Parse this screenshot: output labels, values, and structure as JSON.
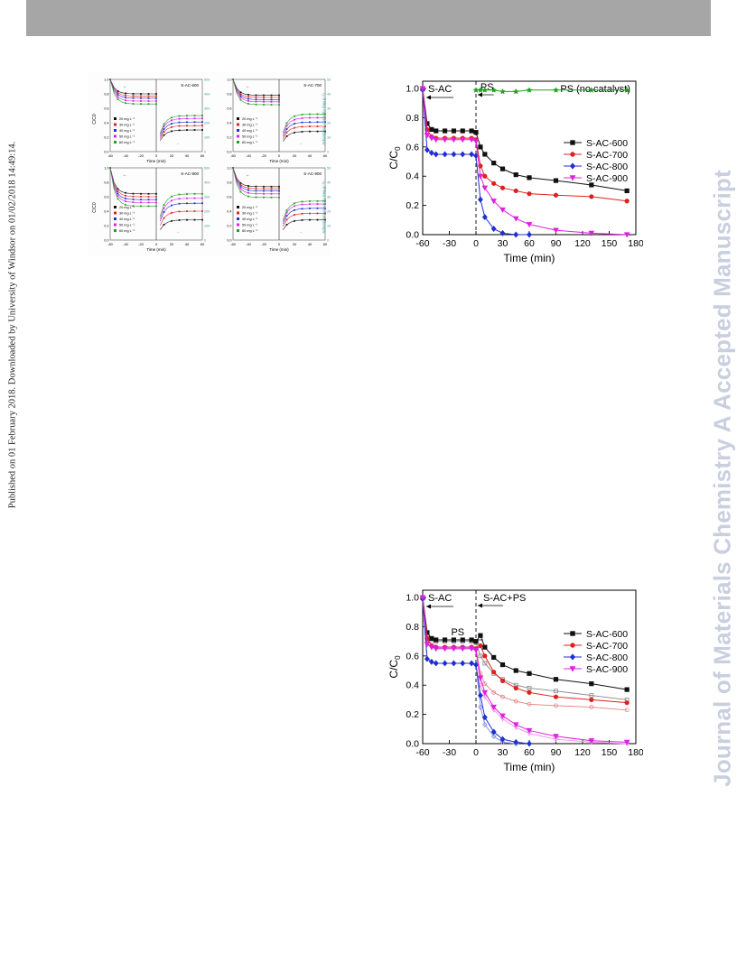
{
  "page": {
    "side_note": "Published on 01 February 2018. Downloaded by University of Windsor on 01/02/2018 14:49:14.",
    "watermark": "Journal of Materials Chemistry A Accepted Manuscript"
  },
  "chart_data": [
    {
      "id": "small-grid",
      "type": "line",
      "panels": [
        {
          "label": "S-AC-600",
          "adsorption": [
            0.8,
            0.77,
            0.74,
            0.7,
            0.66
          ],
          "capacity": [
            0.3,
            0.36,
            0.41,
            0.46,
            0.5
          ]
        },
        {
          "label": "S-AC-700",
          "adsorption": [
            0.78,
            0.75,
            0.72,
            0.69,
            0.65
          ],
          "capacity": [
            0.28,
            0.35,
            0.41,
            0.47,
            0.52
          ]
        },
        {
          "label": "S-AC-800",
          "adsorption": [
            0.64,
            0.6,
            0.56,
            0.52,
            0.47
          ],
          "capacity": [
            0.28,
            0.4,
            0.51,
            0.58,
            0.64
          ]
        },
        {
          "label": "S-AC-900",
          "adsorption": [
            0.74,
            0.71,
            0.68,
            0.64,
            0.59
          ],
          "capacity": [
            0.28,
            0.37,
            0.44,
            0.5,
            0.54
          ]
        }
      ],
      "legend": [
        "20 mg L⁻¹",
        "30 mg L⁻¹",
        "40 mg L⁻¹",
        "50 mg L⁻¹",
        "60 mg L⁻¹"
      ],
      "colors": [
        "#111111",
        "#e02020",
        "#2030d0",
        "#e020e0",
        "#20a020"
      ],
      "xlabel": "Time (min)",
      "ylabel_left": "C/C0",
      "ylabel_right": "Adsorption capacity (mg g⁻¹)",
      "xticks": [
        "-60",
        "-40",
        "-20",
        "0",
        "20",
        "40",
        "60"
      ],
      "yticks_left": [
        "0.0",
        "0.2",
        "0.4",
        "0.6",
        "0.8",
        "1.0"
      ],
      "yticks_right": [
        "0",
        "100",
        "200",
        "300",
        "400",
        "500"
      ]
    },
    {
      "id": "ps-chart",
      "type": "line",
      "xlabel": "Time (min)",
      "ylabel": "C/C",
      "ylabel_sub": "0",
      "xlim": [
        -60,
        180
      ],
      "ylim": [
        0.0,
        1.05
      ],
      "xticks": [
        "-60",
        "-30",
        "0",
        "30",
        "60",
        "90",
        "120",
        "150",
        "180"
      ],
      "yticks": [
        "0.0",
        "0.2",
        "0.4",
        "0.6",
        "0.8",
        "1.0"
      ],
      "annotations": {
        "left": "S-AC",
        "mid": "PS",
        "right": "PS (no catalyst)"
      },
      "series": [
        {
          "name": "S-AC-600",
          "color": "#111111",
          "marker": "square",
          "x": [
            -60,
            -55,
            -50,
            -45,
            -35,
            -25,
            -15,
            -5,
            0,
            5,
            10,
            20,
            30,
            45,
            60,
            90,
            130,
            170
          ],
          "y": [
            1.0,
            0.76,
            0.72,
            0.71,
            0.71,
            0.71,
            0.71,
            0.71,
            0.7,
            0.6,
            0.55,
            0.49,
            0.45,
            0.41,
            0.39,
            0.37,
            0.34,
            0.3
          ]
        },
        {
          "name": "S-AC-700",
          "color": "#e02020",
          "marker": "circle",
          "x": [
            -60,
            -55,
            -50,
            -45,
            -35,
            -25,
            -15,
            -5,
            0,
            5,
            10,
            20,
            30,
            45,
            60,
            90,
            130,
            170
          ],
          "y": [
            1.0,
            0.72,
            0.67,
            0.66,
            0.66,
            0.66,
            0.66,
            0.66,
            0.65,
            0.47,
            0.4,
            0.35,
            0.32,
            0.3,
            0.28,
            0.27,
            0.26,
            0.23
          ]
        },
        {
          "name": "S-AC-800",
          "color": "#2030d0",
          "marker": "diamond",
          "x": [
            -60,
            -55,
            -50,
            -45,
            -35,
            -25,
            -15,
            -5,
            0,
            5,
            10,
            20,
            30,
            45,
            60
          ],
          "y": [
            0.99,
            0.58,
            0.56,
            0.55,
            0.55,
            0.55,
            0.55,
            0.55,
            0.54,
            0.24,
            0.12,
            0.04,
            0.01,
            0.0,
            0.0
          ]
        },
        {
          "name": "S-AC-900",
          "color": "#e020e0",
          "marker": "triangle-down",
          "x": [
            -60,
            -55,
            -50,
            -45,
            -35,
            -25,
            -15,
            -5,
            0,
            5,
            10,
            20,
            30,
            45,
            60,
            90,
            130,
            170
          ],
          "y": [
            1.0,
            0.68,
            0.66,
            0.65,
            0.65,
            0.65,
            0.65,
            0.65,
            0.64,
            0.4,
            0.32,
            0.23,
            0.17,
            0.11,
            0.07,
            0.03,
            0.01,
            0.0
          ]
        },
        {
          "name": "",
          "color": "#20a020",
          "marker": "star",
          "x": [
            0,
            5,
            10,
            20,
            30,
            45,
            60,
            90,
            130,
            170
          ],
          "y": [
            0.99,
            0.99,
            0.99,
            0.99,
            0.98,
            0.98,
            0.99,
            0.99,
            0.99,
            0.99
          ]
        }
      ],
      "legend_position": "right-middle"
    },
    {
      "id": "sac-ps-chart",
      "type": "line",
      "xlabel": "Time (min)",
      "ylabel": "C/C",
      "ylabel_sub": "0",
      "xlim": [
        -60,
        180
      ],
      "ylim": [
        0.0,
        1.05
      ],
      "xticks": [
        "-60",
        "-30",
        "0",
        "30",
        "60",
        "90",
        "120",
        "150",
        "180"
      ],
      "yticks": [
        "0.0",
        "0.2",
        "0.4",
        "0.6",
        "0.8",
        "1.0"
      ],
      "annotations": {
        "left": "S-AC",
        "mid": "PS",
        "right": "S-AC+PS"
      },
      "series": [
        {
          "name": "S-AC-600",
          "color": "#111111",
          "marker": "square",
          "x": [
            -60,
            -55,
            -50,
            -45,
            -35,
            -25,
            -15,
            -5,
            0,
            5,
            10,
            20,
            30,
            45,
            60,
            90,
            130,
            170
          ],
          "y": [
            1.0,
            0.76,
            0.72,
            0.71,
            0.71,
            0.71,
            0.71,
            0.71,
            0.7,
            0.74,
            0.66,
            0.59,
            0.54,
            0.5,
            0.48,
            0.44,
            0.41,
            0.37
          ]
        },
        {
          "name": "S-AC-700",
          "color": "#e02020",
          "marker": "circle",
          "x": [
            -60,
            -55,
            -50,
            -45,
            -35,
            -25,
            -15,
            -5,
            0,
            5,
            10,
            20,
            30,
            45,
            60,
            90,
            130,
            170
          ],
          "y": [
            1.0,
            0.72,
            0.67,
            0.66,
            0.66,
            0.66,
            0.66,
            0.66,
            0.65,
            0.67,
            0.6,
            0.49,
            0.43,
            0.38,
            0.35,
            0.32,
            0.3,
            0.28
          ]
        },
        {
          "name": "S-AC-800",
          "color": "#2030d0",
          "marker": "diamond",
          "x": [
            -60,
            -55,
            -50,
            -45,
            -35,
            -25,
            -15,
            -5,
            0,
            5,
            10,
            20,
            30,
            45,
            60
          ],
          "y": [
            0.99,
            0.58,
            0.56,
            0.55,
            0.55,
            0.55,
            0.55,
            0.55,
            0.54,
            0.33,
            0.18,
            0.08,
            0.03,
            0.01,
            0.0
          ]
        },
        {
          "name": "S-AC-900",
          "color": "#e020e0",
          "marker": "triangle-down",
          "x": [
            -60,
            -55,
            -50,
            -45,
            -35,
            -25,
            -15,
            -5,
            0,
            5,
            10,
            20,
            30,
            45,
            60,
            90,
            130,
            170
          ],
          "y": [
            1.0,
            0.68,
            0.66,
            0.65,
            0.65,
            0.65,
            0.65,
            0.65,
            0.64,
            0.45,
            0.35,
            0.25,
            0.19,
            0.13,
            0.09,
            0.05,
            0.02,
            0.01
          ]
        }
      ],
      "ghost_series": [
        {
          "color": "#888888",
          "x": [
            -60,
            -55,
            -50,
            -45,
            -35,
            -25,
            -15,
            -5,
            0,
            5,
            10,
            20,
            30,
            45,
            60,
            90,
            130,
            170
          ],
          "y": [
            1.0,
            0.74,
            0.71,
            0.7,
            0.7,
            0.7,
            0.7,
            0.7,
            0.69,
            0.6,
            0.55,
            0.48,
            0.44,
            0.4,
            0.38,
            0.36,
            0.33,
            0.3
          ]
        },
        {
          "color": "#e88080",
          "x": [
            -60,
            -55,
            -50,
            -45,
            -35,
            -25,
            -15,
            -5,
            0,
            5,
            10,
            20,
            30,
            45,
            60,
            90,
            130,
            170
          ],
          "y": [
            1.0,
            0.71,
            0.67,
            0.66,
            0.66,
            0.66,
            0.66,
            0.66,
            0.65,
            0.48,
            0.41,
            0.35,
            0.32,
            0.29,
            0.27,
            0.26,
            0.25,
            0.23
          ]
        },
        {
          "color": "#8090e0",
          "x": [
            -60,
            -55,
            -50,
            -45,
            -35,
            -25,
            -15,
            -5,
            0,
            5,
            10,
            20,
            30,
            45
          ],
          "y": [
            0.99,
            0.58,
            0.56,
            0.55,
            0.55,
            0.55,
            0.55,
            0.55,
            0.54,
            0.25,
            0.13,
            0.05,
            0.01,
            0.0
          ]
        },
        {
          "color": "#f090f0",
          "x": [
            -60,
            -55,
            -50,
            -45,
            -35,
            -25,
            -15,
            -5,
            0,
            5,
            10,
            20,
            30,
            45,
            60,
            90,
            130,
            170
          ],
          "y": [
            1.0,
            0.68,
            0.66,
            0.65,
            0.65,
            0.65,
            0.65,
            0.65,
            0.64,
            0.4,
            0.32,
            0.23,
            0.17,
            0.11,
            0.07,
            0.03,
            0.01,
            0.0
          ]
        }
      ],
      "legend_position": "right-middle"
    }
  ]
}
